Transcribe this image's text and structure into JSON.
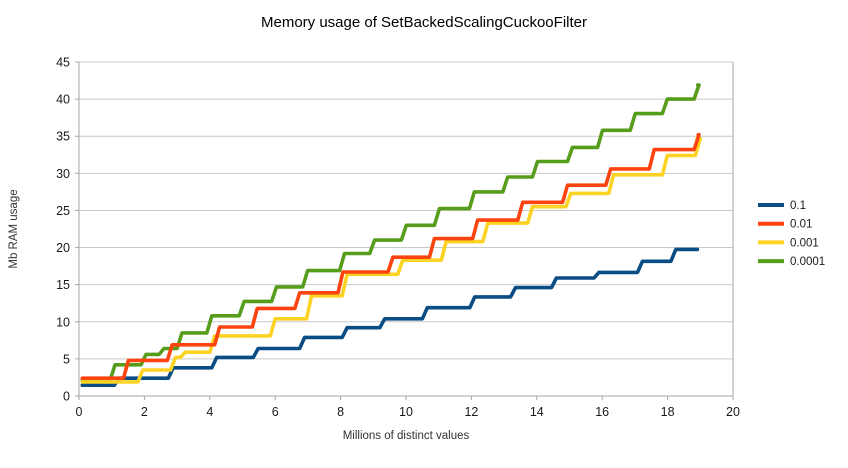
{
  "chart_data": {
    "type": "line",
    "line_style": "step",
    "title": "Memory usage of SetBackedScalingCuckooFilter",
    "xlabel": "Millions of distinct values",
    "ylabel": "Mb RAM usage",
    "xlim": [
      0,
      20
    ],
    "ylim": [
      0,
      45
    ],
    "x_ticks": [
      0,
      2,
      4,
      6,
      8,
      10,
      12,
      14,
      16,
      18,
      20
    ],
    "y_ticks": [
      0,
      5,
      10,
      15,
      20,
      25,
      30,
      35,
      40,
      45
    ],
    "grid": "horizontal",
    "legend_position": "right",
    "grid_color": "#c9c9c9",
    "axis_color": "#a6a6a6",
    "series": [
      {
        "name": "0.1",
        "color": "#0a4d85",
        "end_x": 18.91,
        "levels": [
          [
            0.1,
            1.45
          ],
          [
            1.08,
            2.4
          ],
          [
            2.73,
            3.8
          ],
          [
            4.06,
            5.2
          ],
          [
            5.33,
            6.4
          ],
          [
            6.75,
            7.9
          ],
          [
            8.05,
            9.2
          ],
          [
            9.2,
            10.4
          ],
          [
            10.5,
            11.9
          ],
          [
            11.95,
            13.35
          ],
          [
            13.2,
            14.6
          ],
          [
            14.45,
            15.9
          ],
          [
            15.75,
            16.65
          ],
          [
            17.08,
            18.15
          ],
          [
            18.1,
            19.75
          ]
        ]
      },
      {
        "name": "0.01",
        "color": "#fd4310",
        "end_x": 18.94,
        "levels": [
          [
            0.1,
            2.4
          ],
          [
            1.36,
            4.8
          ],
          [
            2.7,
            6.9
          ],
          [
            4.15,
            9.3
          ],
          [
            5.3,
            11.8
          ],
          [
            6.6,
            13.9
          ],
          [
            7.92,
            16.7
          ],
          [
            9.45,
            18.7
          ],
          [
            10.72,
            21.2
          ],
          [
            12.04,
            23.7
          ],
          [
            13.42,
            26.1
          ],
          [
            14.79,
            28.4
          ],
          [
            16.11,
            30.6
          ],
          [
            17.44,
            33.2
          ],
          [
            18.81,
            35.2
          ]
        ]
      },
      {
        "name": "0.001",
        "color": "#fdd323",
        "end_x": 18.9,
        "levels": [
          [
            0.1,
            1.9
          ],
          [
            1.8,
            3.5
          ],
          [
            2.8,
            5.2
          ],
          [
            3.1,
            5.9
          ],
          [
            4.0,
            8.1
          ],
          [
            5.85,
            10.4
          ],
          [
            6.96,
            13.5
          ],
          [
            8.05,
            16.4
          ],
          [
            9.75,
            18.3
          ],
          [
            11.08,
            20.8
          ],
          [
            12.35,
            23.3
          ],
          [
            13.72,
            25.5
          ],
          [
            14.89,
            27.3
          ],
          [
            16.2,
            29.8
          ],
          [
            17.84,
            32.4
          ],
          [
            18.85,
            34.7
          ]
        ]
      },
      {
        "name": "0.0001",
        "color": "#579d1c",
        "end_x": 18.92,
        "levels": [
          [
            0.1,
            2.1
          ],
          [
            0.95,
            4.2
          ],
          [
            1.9,
            5.6
          ],
          [
            2.45,
            6.4
          ],
          [
            3.0,
            8.5
          ],
          [
            3.91,
            10.8
          ],
          [
            4.9,
            12.75
          ],
          [
            5.89,
            14.7
          ],
          [
            6.84,
            16.9
          ],
          [
            7.97,
            19.2
          ],
          [
            8.89,
            21.0
          ],
          [
            9.86,
            23.0
          ],
          [
            10.87,
            25.25
          ],
          [
            11.94,
            27.5
          ],
          [
            12.96,
            29.5
          ],
          [
            13.87,
            31.6
          ],
          [
            14.94,
            33.5
          ],
          [
            15.86,
            35.8
          ],
          [
            16.86,
            38.05
          ],
          [
            17.84,
            40.0
          ],
          [
            18.81,
            41.9
          ]
        ]
      }
    ]
  }
}
